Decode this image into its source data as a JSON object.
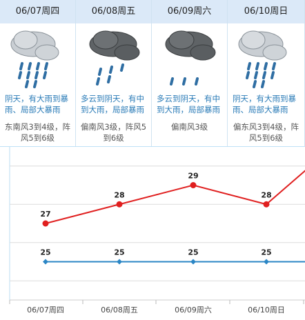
{
  "days": [
    {
      "date": "06/07周四",
      "condition": "阴天，有大雨到暴雨、局部大暴雨",
      "wind": "东南风3到4级，阵风5到6级",
      "icon": "heavy-rain-icon"
    },
    {
      "date": "06/08周五",
      "condition": "多云到阴天，有中到大雨，局部暴雨",
      "wind": "偏南风3级，阵风5到6级",
      "icon": "moderate-rain-icon"
    },
    {
      "date": "06/09周六",
      "condition": "多云到阴天，有中到大雨，局部暴雨",
      "wind": "偏南风3级",
      "icon": "light-rain-icon"
    },
    {
      "date": "06/10周日",
      "condition": "阴天，有大雨到暴雨、局部大暴雨",
      "wind": "偏东风3到4级，阵风5到6级",
      "icon": "heavy-rain-icon"
    }
  ],
  "chart_data": {
    "type": "line",
    "categories": [
      "06/07周四",
      "06/08周五",
      "06/09周六",
      "06/10周日"
    ],
    "series": [
      {
        "values": [
          27,
          28,
          29,
          28
        ],
        "color": "#e01f1f",
        "extra_right": 31
      },
      {
        "values": [
          25,
          25,
          25,
          25
        ],
        "color": "#2b86c5",
        "extra_right": 25
      }
    ],
    "ylim": [
      23,
      31
    ]
  }
}
